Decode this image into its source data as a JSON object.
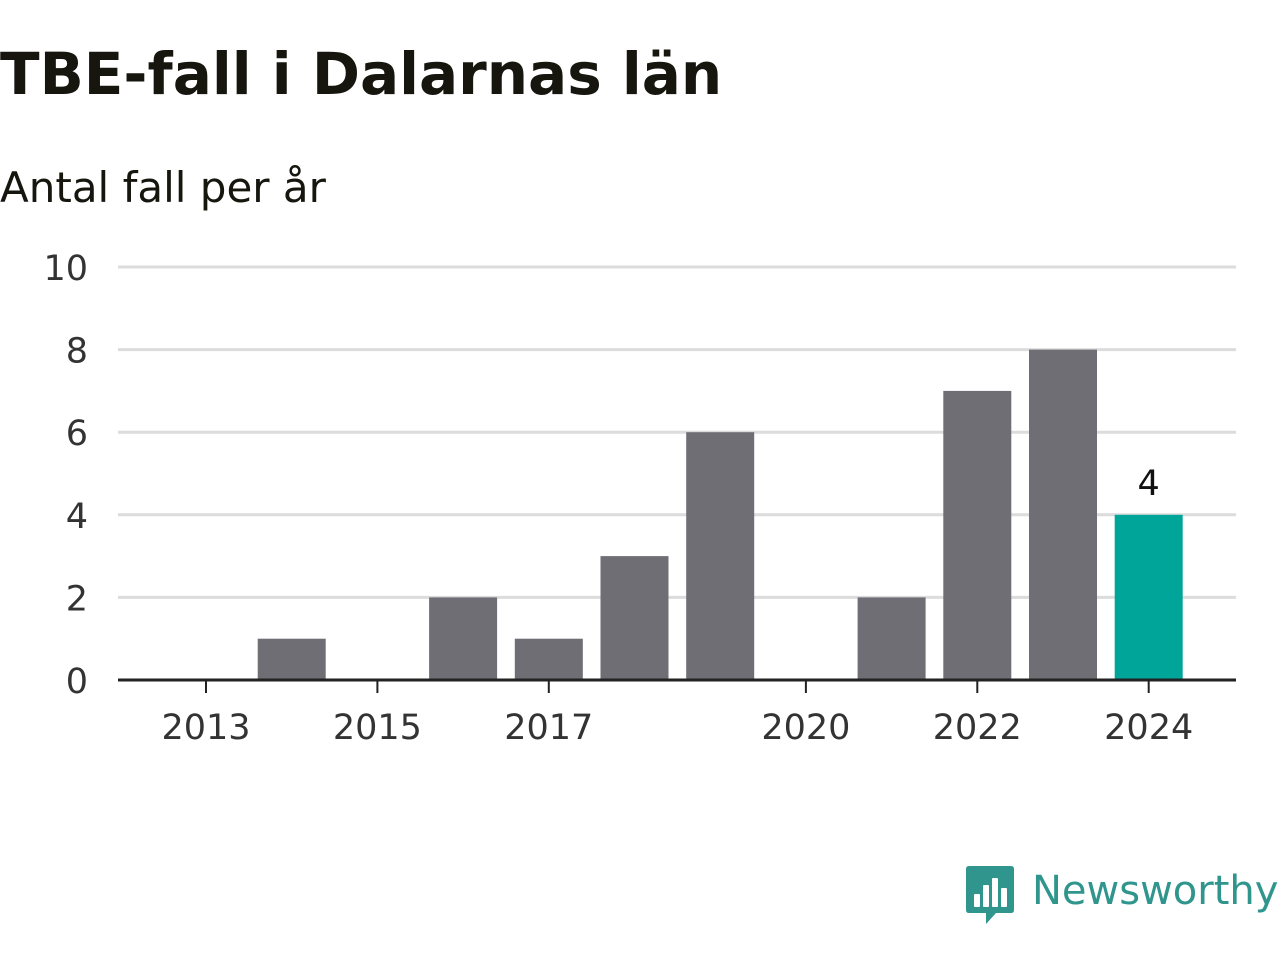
{
  "title": "TBE-fall i Dalarnas län",
  "subtitle": "Antal fall per år",
  "brand": {
    "name": "Newsworthy",
    "logo_icon": "newsworthy-bar-chart-logo-icon",
    "color": "#2f958d"
  },
  "colors": {
    "bar_default": "#6f6e74",
    "bar_highlight": "#00a599",
    "gridline": "#dcdcdc",
    "axis": "#222222",
    "tick_text": "#333333"
  },
  "chart_data": {
    "type": "bar",
    "title": "TBE-fall i Dalarnas län",
    "subtitle": "Antal fall per år",
    "xlabel": "",
    "ylabel": "",
    "categories": [
      "2013",
      "2014",
      "2015",
      "2016",
      "2017",
      "2018",
      "2019",
      "2020",
      "2021",
      "2022",
      "2023",
      "2024"
    ],
    "values": [
      0,
      1,
      0,
      2,
      1,
      3,
      6,
      0,
      2,
      7,
      8,
      4
    ],
    "x_tick_labels": [
      "2013",
      "2015",
      "2017",
      "2020",
      "2022",
      "2024"
    ],
    "ylim": [
      0,
      10
    ],
    "y_ticks": [
      0,
      2,
      4,
      6,
      8,
      10
    ],
    "highlight_category": "2024",
    "data_labels": [
      {
        "category": "2024",
        "text": "4"
      }
    ],
    "grid": true,
    "legend": "none"
  }
}
